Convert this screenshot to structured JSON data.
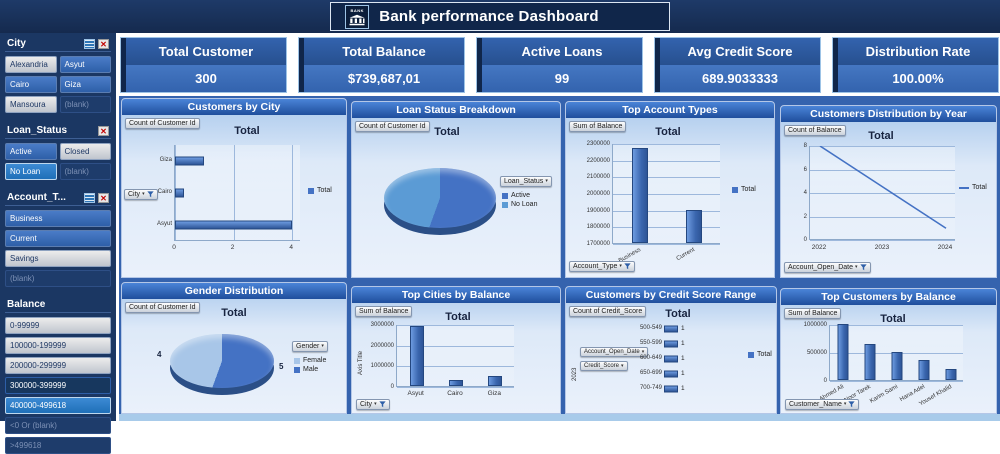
{
  "header": {
    "title": "Bank performance Dashboard",
    "icon_label": "BANK"
  },
  "colors": {
    "navy": "#1B3763",
    "panel_blue": "#3563AE",
    "bar_blue": "#4472C4",
    "light_blue": "#BDD7EE"
  },
  "sidebar": {
    "slicers": [
      {
        "title": "City",
        "columns": 2,
        "icons": [
          "multiselect",
          "clear"
        ],
        "items": [
          {
            "label": "Alexandria",
            "state": "default"
          },
          {
            "label": "Asyut",
            "state": "active"
          },
          {
            "label": "Cairo",
            "state": "active"
          },
          {
            "label": "Giza",
            "state": "active"
          },
          {
            "label": "Mansoura",
            "state": "default"
          },
          {
            "label": "(blank)",
            "state": "disabled"
          }
        ]
      },
      {
        "title": "Loan_Status",
        "columns": 2,
        "icons": [
          "clear"
        ],
        "items": [
          {
            "label": "Active",
            "state": "active"
          },
          {
            "label": "Closed",
            "state": "default"
          },
          {
            "label": "No Loan",
            "state": "selected"
          },
          {
            "label": "(blank)",
            "state": "disabled"
          }
        ]
      },
      {
        "title": "Account_T...",
        "columns": 1,
        "icons": [
          "multiselect",
          "clear"
        ],
        "items": [
          {
            "label": "Business",
            "state": "active"
          },
          {
            "label": "Current",
            "state": "active"
          },
          {
            "label": "Savings",
            "state": "default"
          },
          {
            "label": "(blank)",
            "state": "disabled"
          }
        ]
      },
      {
        "title": "Balance",
        "columns": 1,
        "icons": [],
        "items": [
          {
            "label": "0-99999",
            "state": "default"
          },
          {
            "label": "100000-199999",
            "state": "default"
          },
          {
            "label": "200000-299999",
            "state": "default"
          },
          {
            "label": "300000-399999",
            "state": "dark"
          },
          {
            "label": "400000-499618",
            "state": "selected"
          },
          {
            "label": "<0 Or (blank)",
            "state": "disabled"
          },
          {
            "label": ">499618",
            "state": "disabled"
          }
        ]
      }
    ]
  },
  "kpis": [
    {
      "title": "Total Customer",
      "value": "300"
    },
    {
      "title": "Total Balance",
      "value": "$739,687,01"
    },
    {
      "title": "Active Loans",
      "value": "99"
    },
    {
      "title": "Avg Credit Score",
      "value": "689.9033333"
    },
    {
      "title": "Distribution Rate",
      "value": "100.00%"
    }
  ],
  "chart_data": [
    {
      "key": "customers_by_city",
      "type": "barh",
      "panel_title": "Customers by City",
      "field_button": "Count of Customer Id",
      "chart_title": "Total",
      "categories": [
        "Giza",
        "Cairo",
        "Asyut"
      ],
      "values": [
        1,
        0.3,
        4
      ],
      "xmax": 4.3,
      "xticks": [
        0,
        2,
        4
      ],
      "axis_button": "City",
      "legend": [
        {
          "label": "Total",
          "color": "#4472C4"
        }
      ]
    },
    {
      "key": "loan_status_breakdown",
      "type": "pie",
      "panel_title": "Loan Status Breakdown",
      "field_button": "Count of Customer Id",
      "chart_title": "Total",
      "legend_title": "Loan_Status",
      "start_angle": 0,
      "slices": [
        {
          "label": "Active",
          "value": 5,
          "color": "#4472C4"
        },
        {
          "label": "No Loan",
          "value": 4,
          "color": "#5B9BD5"
        }
      ]
    },
    {
      "key": "top_account_types",
      "type": "column",
      "panel_title": "Top Account Types",
      "field_button": "Sum of Balance",
      "chart_title": "Total",
      "categories": [
        "Business",
        "Current"
      ],
      "values": [
        2270000,
        1900000
      ],
      "ymin": 1700000,
      "ymax": 2300000,
      "yticks": [
        2300000,
        2200000,
        2100000,
        2000000,
        1900000,
        1800000,
        1700000
      ],
      "axis_button": "Account_Type",
      "legend": [
        {
          "label": "Total",
          "color": "#4472C4"
        }
      ]
    },
    {
      "key": "customers_distribution_by_year",
      "type": "line",
      "panel_title": "Customers Distribution by Year",
      "field_button": "Count of Balance",
      "chart_title": "Total",
      "x": [
        2022,
        2023,
        2024
      ],
      "values": [
        8,
        4.5,
        1
      ],
      "ymin": 0,
      "ymax": 8,
      "yticks": [
        8,
        6,
        4,
        2,
        0
      ],
      "axis_button": "Account_Open_Date",
      "legend": [
        {
          "label": "Total",
          "color": "#4472C4"
        }
      ]
    },
    {
      "key": "gender_distribution",
      "type": "pie",
      "panel_title": "Gender Distribution",
      "field_button": "Count of Customer Id",
      "chart_title": "Total",
      "legend_title": "Gender",
      "start_angle": 200,
      "slices": [
        {
          "label": "Female",
          "value": 4,
          "color": "#A8C6E8",
          "data_label": "4"
        },
        {
          "label": "Male",
          "value": 5,
          "color": "#4472C4",
          "data_label": "5"
        }
      ]
    },
    {
      "key": "top_cities_by_balance",
      "type": "column",
      "panel_title": "Top Cities by Balance",
      "field_button": "Sum of Balance",
      "chart_title": "Total",
      "y_axis_title": "Axis Title",
      "categories": [
        "Asyut",
        "Cairo",
        "Giza"
      ],
      "values": [
        2900000,
        300000,
        500000
      ],
      "ymin": 0,
      "ymax": 3000000,
      "yticks": [
        3000000,
        2000000,
        1000000,
        0
      ],
      "axis_button": "City",
      "legend": []
    },
    {
      "key": "customers_by_credit_score_range",
      "type": "barh_labeled",
      "panel_title": "Customers by Credit Score Range",
      "field_button": "Count of Credit_Score",
      "chart_title": "Total",
      "group_label": "2023",
      "side_buttons": [
        "Account_Open_Date",
        "Credit_Score"
      ],
      "categories": [
        "500-549",
        "550-599",
        "600-649",
        "650-699",
        "700-749"
      ],
      "values": [
        1,
        1,
        1,
        1,
        1
      ],
      "data_labels": [
        "1",
        "1",
        "1",
        "1",
        "1"
      ],
      "xmax": 6,
      "legend": [
        {
          "label": "Total",
          "color": "#4472C4"
        }
      ]
    },
    {
      "key": "top_customers_by_balance",
      "type": "column",
      "panel_title": "Top Customers by Balance",
      "field_button": "Sum of Balance",
      "chart_title": "Total",
      "categories": [
        "Ahmed Ali",
        "Noor Tarek",
        "Karim Sami",
        "Hana Adel",
        "Yousef Khalid"
      ],
      "values": [
        1000000,
        650000,
        500000,
        350000,
        200000
      ],
      "ymin": 0,
      "ymax": 1000000,
      "yticks": [
        1000000,
        500000,
        0
      ],
      "axis_button": "Customer_Name",
      "legend": []
    }
  ]
}
